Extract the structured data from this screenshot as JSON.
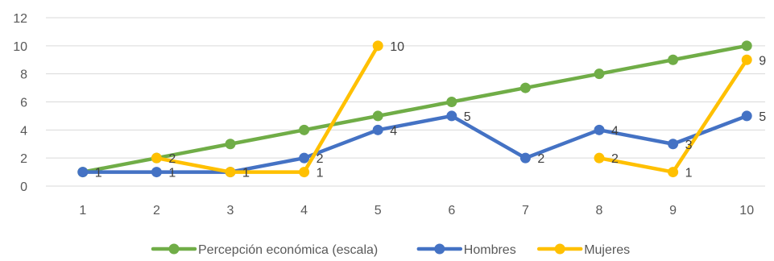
{
  "chart_data": {
    "type": "line",
    "categories": [
      "1",
      "2",
      "3",
      "4",
      "5",
      "6",
      "7",
      "8",
      "9",
      "10"
    ],
    "ylim": [
      0,
      12
    ],
    "yticks": [
      0,
      2,
      4,
      6,
      8,
      10,
      12
    ],
    "grid": true,
    "legend_position": "bottom",
    "series": [
      {
        "name": "Percepción económica (escala)",
        "color": "#70AD47",
        "values": [
          1,
          2,
          3,
          4,
          5,
          6,
          7,
          8,
          9,
          10
        ],
        "labels": [
          null,
          null,
          null,
          null,
          null,
          null,
          null,
          null,
          null,
          null
        ]
      },
      {
        "name": "Hombres",
        "color": "#4472C4",
        "values": [
          1,
          1,
          1,
          2,
          4,
          5,
          2,
          4,
          3,
          5
        ],
        "labels": [
          "1",
          "1",
          "1",
          "2",
          "4",
          "5",
          "2",
          "4",
          "3",
          "5"
        ]
      },
      {
        "name": "Mujeres",
        "color": "#FFC000",
        "values": [
          null,
          2,
          1,
          1,
          10,
          null,
          null,
          2,
          1,
          9
        ],
        "labels": [
          null,
          "2",
          "1",
          "1",
          "10",
          null,
          null,
          "2",
          "1",
          "9"
        ]
      }
    ]
  }
}
